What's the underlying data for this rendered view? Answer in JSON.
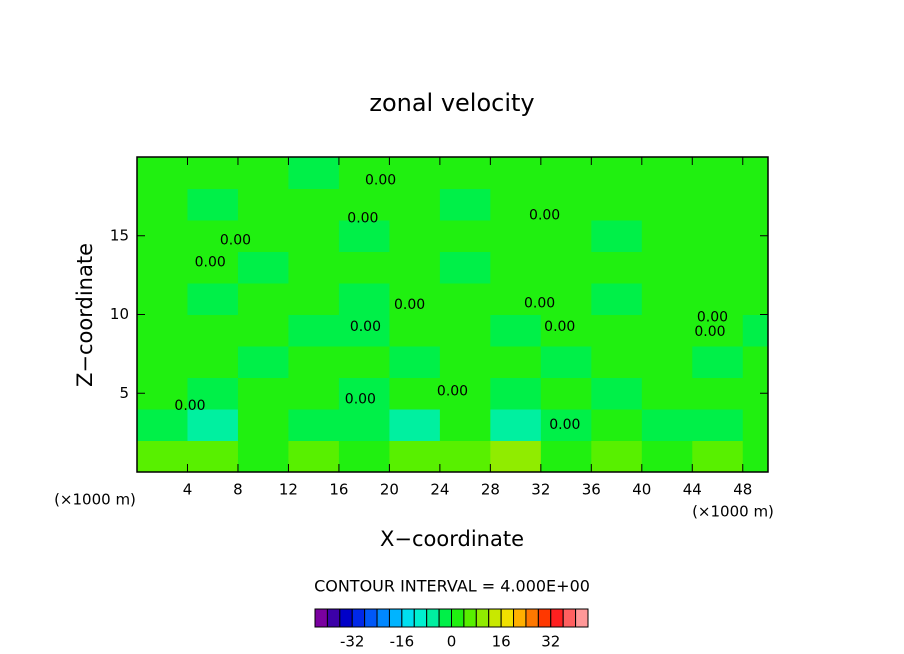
{
  "chart_data": {
    "type": "contour",
    "title": "zonal velocity",
    "xlabel": "X−coordinate",
    "ylabel": "Z−coordinate",
    "x_unit_label": "(×1000 m)",
    "y_unit_label": "(×1000 m)",
    "contour_interval_text": "CONTOUR INTERVAL = 4.000E+00",
    "xlim": [
      0,
      50
    ],
    "ylim": [
      0,
      20
    ],
    "xticks": [
      4,
      8,
      12,
      16,
      20,
      24,
      28,
      32,
      36,
      40,
      44,
      48
    ],
    "yticks": [
      5,
      10,
      15
    ],
    "x": [
      2,
      6,
      10,
      14,
      18,
      22,
      26,
      30,
      34,
      38,
      42,
      46,
      50
    ],
    "y": [
      1,
      3,
      5,
      7,
      9,
      11,
      13,
      15,
      17,
      19
    ],
    "z": [
      [
        6,
        6,
        2,
        6,
        2,
        6,
        6,
        10,
        2,
        6,
        2,
        6,
        2
      ],
      [
        -2,
        -6,
        2,
        -2,
        -2,
        -6,
        2,
        -6,
        -2,
        2,
        -2,
        -2,
        2
      ],
      [
        2,
        -2,
        2,
        2,
        -2,
        2,
        2,
        -2,
        2,
        -2,
        2,
        2,
        2
      ],
      [
        2,
        2,
        -2,
        2,
        2,
        -2,
        2,
        2,
        -2,
        2,
        2,
        -2,
        2
      ],
      [
        2,
        2,
        2,
        -2,
        -2,
        2,
        2,
        -2,
        2,
        2,
        2,
        2,
        -2
      ],
      [
        2,
        -2,
        2,
        2,
        -2,
        2,
        2,
        2,
        2,
        -2,
        2,
        2,
        2
      ],
      [
        2,
        2,
        -2,
        2,
        2,
        2,
        -2,
        2,
        2,
        2,
        2,
        2,
        2
      ],
      [
        2,
        2,
        2,
        2,
        -2,
        2,
        2,
        2,
        2,
        -2,
        2,
        2,
        2
      ],
      [
        2,
        -2,
        2,
        2,
        2,
        2,
        -2,
        2,
        2,
        2,
        2,
        2,
        2
      ],
      [
        2,
        2,
        2,
        -2,
        2,
        2,
        2,
        2,
        2,
        2,
        2,
        2,
        2
      ]
    ],
    "levels_lim": [
      -44,
      44
    ],
    "level_step": 4,
    "level_colors": [
      "#7a00a0",
      "#3c00a8",
      "#0000c8",
      "#0028e8",
      "#0058f8",
      "#0088ff",
      "#00b4ff",
      "#00e0f0",
      "#00f0d0",
      "#00f0a0",
      "#00f048",
      "#20f010",
      "#58f000",
      "#90ec00",
      "#c8e800",
      "#f0e000",
      "#ffb000",
      "#ff7800",
      "#ff3800",
      "#ff2020",
      "#ff6060",
      "#ff9898"
    ],
    "colorbar_ticks": [
      -32,
      -16,
      0,
      16,
      32
    ],
    "contour_labels": [
      {
        "x": 19.3,
        "y": 18.5,
        "value": 0,
        "label": "0.00"
      },
      {
        "x": 17.9,
        "y": 16.1,
        "value": 0,
        "label": "0.00"
      },
      {
        "x": 7.8,
        "y": 14.7,
        "value": 0,
        "label": "0.00"
      },
      {
        "x": 5.8,
        "y": 13.3,
        "value": 0,
        "label": "0.00"
      },
      {
        "x": 32.3,
        "y": 16.3,
        "value": 0,
        "label": "0.00"
      },
      {
        "x": 21.6,
        "y": 10.6,
        "value": 0,
        "label": "0.00"
      },
      {
        "x": 31.9,
        "y": 10.7,
        "value": 0,
        "label": "0.00"
      },
      {
        "x": 18.1,
        "y": 9.2,
        "value": 0,
        "label": "0.00"
      },
      {
        "x": 33.5,
        "y": 9.2,
        "value": 0,
        "label": "0.00"
      },
      {
        "x": 45.6,
        "y": 9.8,
        "value": 0,
        "label": "0.00"
      },
      {
        "x": 45.4,
        "y": 8.9,
        "value": 0,
        "label": "0.00"
      },
      {
        "x": 17.7,
        "y": 4.6,
        "value": 0,
        "label": "0.00"
      },
      {
        "x": 25.0,
        "y": 5.1,
        "value": 0,
        "label": "0.00"
      },
      {
        "x": 4.2,
        "y": 4.2,
        "value": 0,
        "label": "0.00"
      },
      {
        "x": 33.9,
        "y": 3.0,
        "value": 0,
        "label": "0.00"
      }
    ]
  }
}
